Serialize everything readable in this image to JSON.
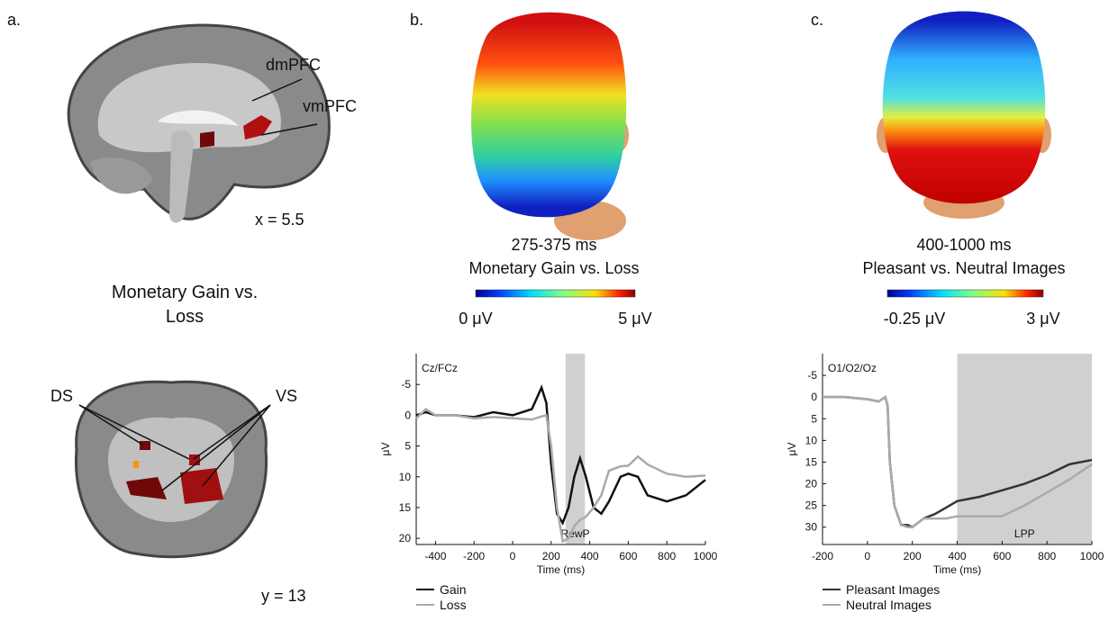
{
  "panels": {
    "a": {
      "label": "a.",
      "dmpfc": "dmPFC",
      "vmpfc": "vmPFC",
      "x_coord": "x = 5.5",
      "contrast": "Monetary Gain vs. Loss",
      "ds": "DS",
      "vs": "VS",
      "y_coord": "y = 13"
    },
    "b": {
      "label": "b.",
      "window": "275-375 ms",
      "contrast": "Monetary Gain vs. Loss",
      "cbar_min": "0 μV",
      "cbar_max": "5 μV"
    },
    "c": {
      "label": "c.",
      "window": "400-1000 ms",
      "contrast": "Pleasant vs. Neutral Images",
      "cbar_min": "-0.25 μV",
      "cbar_max": "3 μV"
    }
  },
  "chart_data": [
    {
      "type": "line",
      "channel": "Cz/FCz",
      "y_label": "μV",
      "x_label": "Time (ms)",
      "x": [
        -500,
        -450,
        -400,
        -300,
        -200,
        -100,
        0,
        100,
        150,
        175,
        200,
        230,
        260,
        290,
        320,
        350,
        380,
        420,
        460,
        500,
        560,
        600,
        650,
        700,
        800,
        900,
        1000
      ],
      "series": [
        {
          "name": "Gain",
          "color": "#111111",
          "values": [
            0,
            -0.5,
            0,
            0,
            0.3,
            -0.5,
            0,
            -1,
            -4.5,
            -2,
            8,
            16,
            17.5,
            15,
            10,
            7,
            10,
            15,
            16,
            14,
            10,
            9.5,
            10,
            13,
            14,
            13,
            10.5
          ]
        },
        {
          "name": "Loss",
          "color": "#aaaaaa",
          "values": [
            0.5,
            -1,
            0,
            0,
            0.5,
            0.3,
            0.5,
            0.7,
            0.2,
            0,
            5,
            15,
            20.5,
            20,
            18,
            17,
            16.5,
            15,
            13,
            9,
            8.3,
            8.2,
            6.7,
            8,
            9.5,
            10,
            9.8
          ]
        }
      ],
      "xlim": [
        -500,
        1000
      ],
      "xticks": [
        -400,
        -200,
        0,
        200,
        400,
        600,
        800,
        1000
      ],
      "ylim": [
        -10,
        21
      ],
      "yticks": [
        -5,
        0,
        5,
        10,
        15,
        20
      ],
      "inverted": true,
      "shade": {
        "x": [
          275,
          375
        ],
        "label": "RewP"
      }
    },
    {
      "type": "line",
      "channel": "O1/O2/Oz",
      "y_label": "μV",
      "x_label": "Time (ms)",
      "x": [
        -200,
        -100,
        0,
        50,
        80,
        90,
        100,
        120,
        150,
        180,
        200,
        250,
        300,
        350,
        400,
        500,
        600,
        700,
        800,
        900,
        1000
      ],
      "series": [
        {
          "name": "Pleasant Images",
          "color": "#333333",
          "values": [
            0,
            0,
            0.5,
            1,
            0,
            2,
            15,
            25,
            29.5,
            29.5,
            30,
            28,
            27,
            25.5,
            24,
            23,
            21.5,
            20,
            18,
            15.5,
            14.5
          ]
        },
        {
          "name": "Neutral Images",
          "color": "#aaaaaa",
          "values": [
            0,
            0,
            0.5,
            1,
            0,
            2,
            15,
            25,
            29.5,
            30,
            30,
            28,
            28,
            28,
            27.5,
            27.5,
            27.5,
            25,
            22,
            19,
            15.5
          ]
        }
      ],
      "xlim": [
        -200,
        1000
      ],
      "xticks": [
        -200,
        0,
        200,
        400,
        600,
        800,
        1000
      ],
      "ylim": [
        -10,
        34
      ],
      "yticks": [
        -5,
        0,
        5,
        10,
        15,
        20,
        25,
        30
      ],
      "inverted": true,
      "shade": {
        "x": [
          400,
          1000
        ],
        "label": "LPP"
      }
    }
  ]
}
